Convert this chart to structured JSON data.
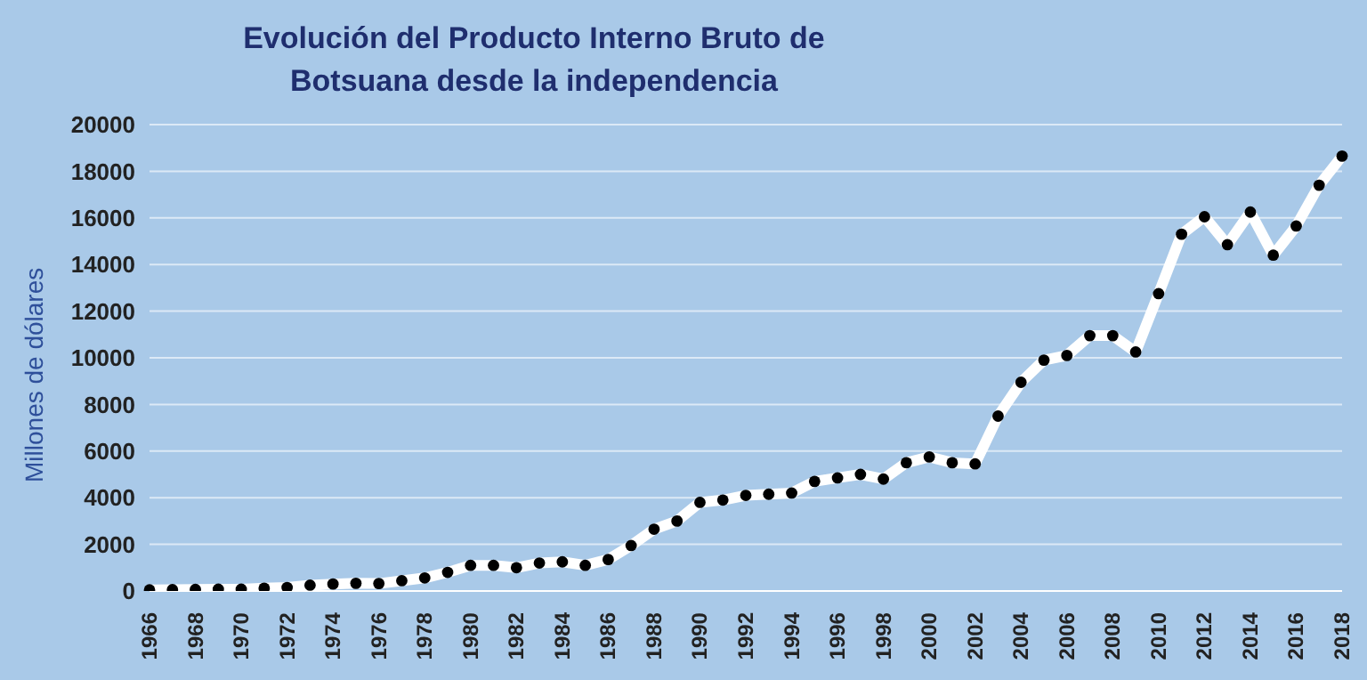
{
  "chart_data": {
    "type": "line",
    "title": "Evolución del Producto Interno Bruto de Botsuana desde la independencia",
    "ylabel": "Millones de dólares",
    "categories": [
      "1966",
      null,
      "1968",
      null,
      "1970",
      null,
      "1972",
      null,
      "1974",
      null,
      "1976",
      null,
      "1978",
      null,
      "1980",
      null,
      "1982",
      null,
      "1984",
      null,
      "1986",
      null,
      "1988",
      null,
      "1990",
      null,
      "1992",
      null,
      "1994",
      null,
      "1996",
      null,
      "1998",
      null,
      "2000",
      null,
      "2002",
      null,
      "2004",
      null,
      "2006",
      null,
      "2008",
      null,
      "2010",
      null,
      "2012",
      null,
      "2014",
      null,
      "2016",
      null,
      "2018"
    ],
    "series": [
      {
        "color": "#ffffff",
        "values": [
          50,
          60,
          70,
          80,
          80,
          120,
          150,
          250,
          300,
          330,
          320,
          440,
          560,
          800,
          1100,
          1100,
          1000,
          1200,
          1250,
          1100,
          1350,
          1950,
          2650,
          3000,
          3800,
          3900,
          4100,
          4150,
          4200,
          4700,
          4850,
          5000,
          4800,
          5500,
          5750,
          5500,
          5450,
          7500,
          8950,
          9900,
          10100,
          10950,
          10950,
          10250,
          12750,
          15300,
          16050,
          14850,
          16250,
          14400,
          15650,
          17400,
          18650
        ]
      }
    ],
    "ylim": [
      0,
      20000
    ],
    "yticks": [
      0,
      2000,
      4000,
      6000,
      8000,
      10000,
      12000,
      14000,
      16000,
      18000,
      20000
    ],
    "grid": "y",
    "marker": "circle",
    "line_style": "solid",
    "legend": false
  }
}
